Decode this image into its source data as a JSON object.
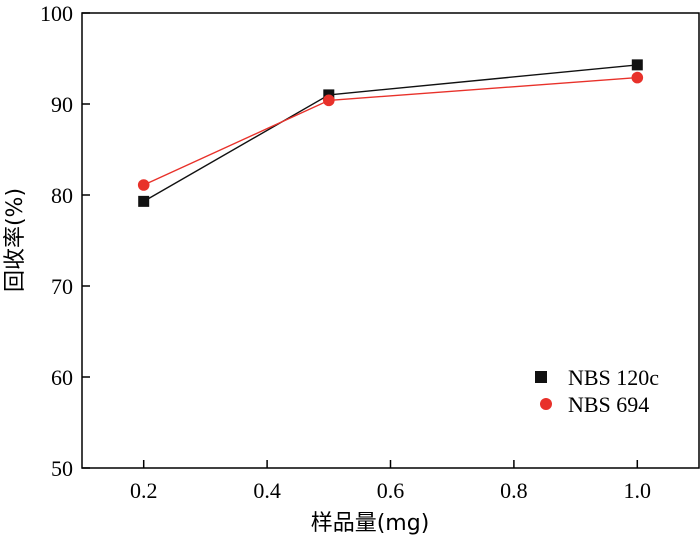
{
  "chart_data": {
    "type": "line",
    "title": "",
    "xlabel": "样品量(mg)",
    "ylabel": "回收率(%)",
    "xlim": [
      0.1,
      1.1
    ],
    "ylim": [
      50,
      100
    ],
    "x_ticks": [
      "0.2",
      "0.4",
      "0.6",
      "0.8",
      "1.0"
    ],
    "y_ticks": [
      "50",
      "60",
      "70",
      "80",
      "90",
      "100"
    ],
    "grid": false,
    "legend_position": "bottom-right",
    "series": [
      {
        "name": "NBS 120c",
        "marker": "square",
        "color": "#111111",
        "x": [
          0.2,
          0.5,
          1.0
        ],
        "y": [
          79.3,
          91.0,
          94.3
        ]
      },
      {
        "name": "NBS 694",
        "marker": "circle",
        "color": "#e8312a",
        "x": [
          0.2,
          0.5,
          1.0
        ],
        "y": [
          81.1,
          90.4,
          92.9
        ]
      }
    ]
  }
}
